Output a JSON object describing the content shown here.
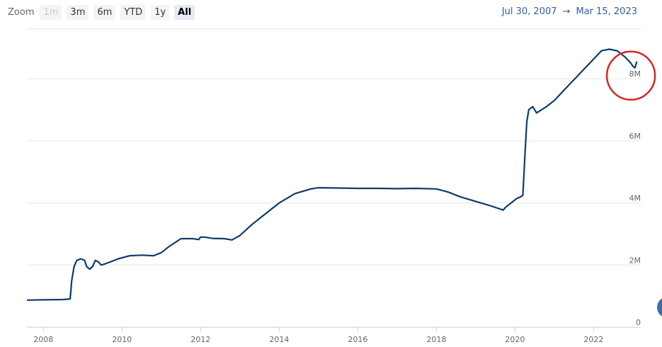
{
  "range_selector": {
    "label": "Zoom",
    "buttons": [
      "1m",
      "3m",
      "6m",
      "YTD",
      "1y",
      "All"
    ],
    "active": "All",
    "disabled": [
      "1m"
    ]
  },
  "range_display": {
    "from": "Jul 30, 2007",
    "arrow": "→",
    "to": "Mar 15, 2023"
  },
  "colors": {
    "series": "#0c3d6e",
    "annotation_circle": "#d62728",
    "side_button": "#3f6fa8"
  },
  "chart_data": {
    "type": "line",
    "x_axis": {
      "ticks": [
        2008,
        2010,
        2012,
        2014,
        2016,
        2018,
        2020,
        2022
      ],
      "range": [
        2007.58,
        2023.2
      ]
    },
    "y_axis": {
      "ticks": [
        0,
        2000000,
        4000000,
        6000000,
        8000000
      ],
      "tick_labels": [
        "0",
        "2M",
        "4M",
        "6M",
        "8M"
      ],
      "range": [
        0,
        9600000
      ],
      "position": "right"
    },
    "grid": true,
    "annotation": {
      "shape": "circle",
      "x": 2022.95,
      "y": 8100000
    },
    "series": [
      {
        "x": [
          2007.58,
          2008.0,
          2008.5,
          2008.68,
          2008.72,
          2008.78,
          2008.85,
          2008.95,
          2009.05,
          2009.1,
          2009.18,
          2009.25,
          2009.32,
          2009.4,
          2009.47,
          2009.55,
          2009.7,
          2009.9,
          2010.2,
          2010.5,
          2010.8,
          2011.0,
          2011.2,
          2011.5,
          2011.8,
          2011.95,
          2012.0,
          2012.1,
          2012.3,
          2012.6,
          2012.8,
          2013.0,
          2013.3,
          2013.6,
          2014.0,
          2014.4,
          2014.8,
          2015.0,
          2015.5,
          2016.0,
          2016.5,
          2017.0,
          2017.5,
          2018.0,
          2018.3,
          2018.6,
          2019.0,
          2019.4,
          2019.7,
          2019.75,
          2019.9,
          2020.05,
          2020.15,
          2020.2,
          2020.25,
          2020.3,
          2020.35,
          2020.45,
          2020.55,
          2020.8,
          2021.0,
          2021.3,
          2021.6,
          2021.9,
          2022.2,
          2022.4,
          2022.6,
          2022.8,
          2022.95,
          2023.0,
          2023.05,
          2023.1
        ],
        "values": [
          870000,
          880000,
          890000,
          910000,
          1500000,
          1950000,
          2150000,
          2200000,
          2150000,
          1950000,
          1870000,
          1950000,
          2150000,
          2100000,
          2000000,
          2030000,
          2100000,
          2200000,
          2300000,
          2320000,
          2300000,
          2400000,
          2600000,
          2850000,
          2850000,
          2820000,
          2900000,
          2900000,
          2860000,
          2850000,
          2810000,
          2950000,
          3300000,
          3600000,
          4000000,
          4300000,
          4450000,
          4490000,
          4480000,
          4470000,
          4470000,
          4460000,
          4470000,
          4450000,
          4350000,
          4200000,
          4050000,
          3900000,
          3770000,
          3850000,
          4000000,
          4150000,
          4200000,
          4250000,
          5500000,
          6600000,
          7000000,
          7100000,
          6900000,
          7100000,
          7300000,
          7700000,
          8100000,
          8500000,
          8900000,
          8950000,
          8900000,
          8700000,
          8500000,
          8400000,
          8350000,
          8550000
        ]
      }
    ]
  }
}
